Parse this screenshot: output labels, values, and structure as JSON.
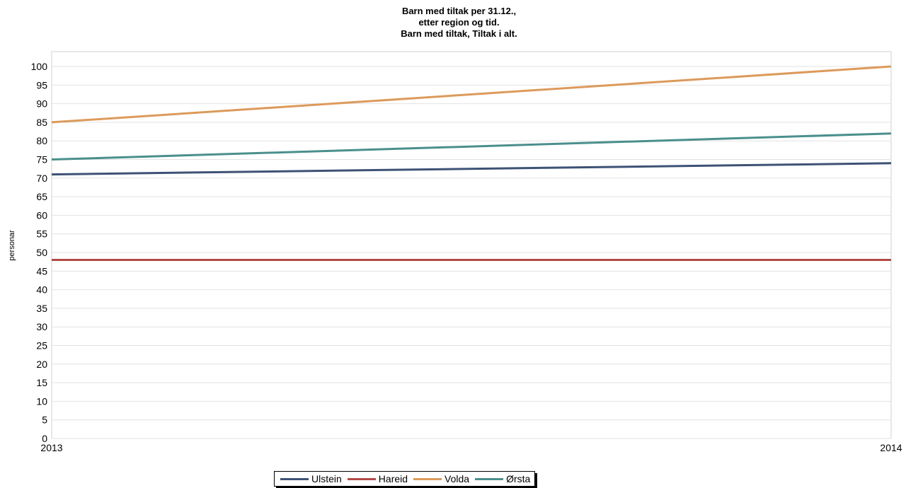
{
  "chart_data": {
    "type": "line",
    "title": [
      "Barn med tiltak per 31.12.,",
      "etter region og tid.",
      "Barn med tiltak, Tiltak i alt."
    ],
    "ylabel": "personar",
    "xlabel": "",
    "x": [
      "2013",
      "2014"
    ],
    "ylim": [
      0,
      104
    ],
    "yticks": [
      0,
      5,
      10,
      15,
      20,
      25,
      30,
      35,
      40,
      45,
      50,
      55,
      60,
      65,
      70,
      75,
      80,
      85,
      90,
      95,
      100
    ],
    "grid": true,
    "legend_position": "bottom",
    "series": [
      {
        "name": "Ulstein",
        "values": [
          71,
          74
        ],
        "color": "#3d5275"
      },
      {
        "name": "Hareid",
        "values": [
          48,
          48
        ],
        "color": "#b24a47"
      },
      {
        "name": "Volda",
        "values": [
          85,
          100
        ],
        "color": "#dc9a5a"
      },
      {
        "name": "Ørsta",
        "values": [
          75,
          82
        ],
        "color": "#4a8f8c"
      }
    ]
  }
}
